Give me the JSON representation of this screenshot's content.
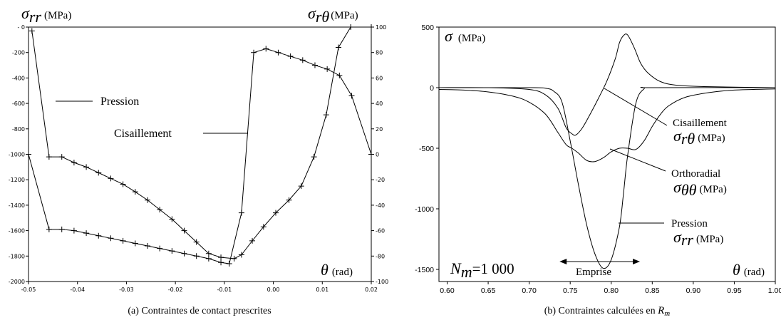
{
  "figure": {
    "caption_a": "(a)  Contraintes de contact prescrites",
    "caption_b_text": "(b)  Contraintes calculées en ",
    "caption_b_sym": "R",
    "caption_b_sub": "m"
  },
  "chart_data": [
    {
      "type": "line",
      "id": "a",
      "x_axis": {
        "symbol": "θ",
        "unit": "(rad)",
        "range": [
          -0.05,
          0.02
        ],
        "ticks": [
          "-0.05",
          "-0.04",
          "-0.03",
          "-0.02",
          "-0.01",
          "0.00",
          "0.01",
          "0.02"
        ],
        "tick_values": [
          -0.05,
          -0.04,
          -0.03,
          -0.02,
          -0.01,
          0.0,
          0.01,
          0.02
        ]
      },
      "y_left": {
        "symbol": "σ",
        "sub": "rr",
        "unit": "(MPa)",
        "range": [
          -2000,
          0
        ],
        "ticks": [
          "- 0",
          "-200",
          "-400",
          "-600",
          "-800",
          "-1000",
          "-1200",
          "-1400",
          "-1600",
          "-1800",
          "-2000"
        ],
        "tick_values": [
          0,
          -200,
          -400,
          -600,
          -800,
          -1000,
          -1200,
          -1400,
          -1600,
          -1800,
          -2000
        ]
      },
      "y_right": {
        "symbol": "σ",
        "sub": "rθ",
        "unit": "(MPa)",
        "range": [
          -100,
          100
        ],
        "ticks": [
          "100",
          "80",
          "60",
          "40",
          "20",
          "0",
          "-20",
          "-40",
          "-60",
          "-80",
          "-100"
        ],
        "tick_values": [
          100,
          80,
          60,
          40,
          20,
          0,
          -20,
          -40,
          -60,
          -80,
          -100
        ]
      },
      "annotations": [
        {
          "text": "Pression",
          "target": "pression"
        },
        {
          "text": "Cisaillement",
          "target": "cisaillement"
        }
      ],
      "series": [
        {
          "key": "pression",
          "axis": "left",
          "marker": "plus",
          "x": [
            -0.0493,
            -0.0458,
            -0.0432,
            -0.0407,
            -0.0382,
            -0.0357,
            -0.0332,
            -0.0307,
            -0.0282,
            -0.0257,
            -0.0232,
            -0.0207,
            -0.0182,
            -0.0157,
            -0.0132,
            -0.0107,
            -0.008,
            -0.0065,
            -0.0043,
            -0.002,
            0.0005,
            0.0032,
            0.0057,
            0.0083,
            0.0108,
            0.0133,
            0.0158,
            0.02
          ],
          "y": [
            -30,
            -1020,
            -1020,
            -1065,
            -1100,
            -1145,
            -1190,
            -1235,
            -1295,
            -1360,
            -1435,
            -1510,
            -1600,
            -1690,
            -1780,
            -1810,
            -1820,
            -1790,
            -1680,
            -1570,
            -1460,
            -1360,
            -1250,
            -1020,
            -690,
            -160,
            0,
            0
          ]
        },
        {
          "key": "cisaillement",
          "axis": "right",
          "marker": "plus",
          "x": [
            -0.05,
            -0.0458,
            -0.0432,
            -0.0407,
            -0.0382,
            -0.0357,
            -0.0332,
            -0.0307,
            -0.0282,
            -0.0257,
            -0.0232,
            -0.0207,
            -0.0182,
            -0.0157,
            -0.0132,
            -0.0107,
            -0.009,
            -0.0065,
            -0.004,
            -0.0015,
            0.001,
            0.0035,
            0.006,
            0.0085,
            0.011,
            0.0135,
            0.016,
            0.02
          ],
          "y": [
            0,
            -59,
            -59,
            -60,
            -62,
            -64,
            -66,
            -68,
            -70,
            -72,
            -74,
            -76,
            -78,
            -80,
            -82,
            -85,
            -86,
            -46,
            80,
            83,
            80,
            77,
            74,
            70,
            67,
            62,
            46,
            0
          ]
        }
      ]
    },
    {
      "type": "line",
      "id": "b",
      "x_axis": {
        "symbol": "θ",
        "unit": "(rad)",
        "range": [
          0.59,
          1.0
        ],
        "ticks": [
          "0.60",
          "0.65",
          "0.70",
          "0.75",
          "0.80",
          "0.85",
          "0.90",
          "0.95",
          "1.00"
        ],
        "tick_values": [
          0.6,
          0.65,
          0.7,
          0.75,
          0.8,
          0.85,
          0.9,
          0.95,
          1.0
        ]
      },
      "y_axis": {
        "symbol": "σ",
        "unit": "(MPa)",
        "range": [
          -1600,
          500
        ],
        "ticks": [
          "500",
          "0",
          "-500",
          "-1000",
          "-1500"
        ],
        "tick_values": [
          500,
          0,
          -500,
          -1000,
          -1500
        ]
      },
      "inset_sym": "N",
      "inset_sub": "m",
      "inset_value": "=1 000",
      "span_label": "Emprise",
      "span": [
        0.737,
        0.835
      ],
      "annotations": [
        {
          "text": "Cisaillement",
          "symbol": "σ",
          "sub": "rθ",
          "unit": "(MPa)",
          "target": "cisaillement"
        },
        {
          "text": "Orthoradial",
          "symbol": "σ",
          "sub": "θθ",
          "unit": "(MPa)",
          "target": "orthoradial"
        },
        {
          "text": "Pression",
          "symbol": "σ",
          "sub": "rr",
          "unit": "(MPa)",
          "target": "pression"
        }
      ],
      "series": [
        {
          "key": "cisaillement",
          "x": [
            0.59,
            0.65,
            0.7,
            0.72,
            0.735,
            0.745,
            0.752,
            0.757,
            0.765,
            0.775,
            0.785,
            0.795,
            0.805,
            0.81,
            0.815,
            0.82,
            0.828,
            0.836,
            0.845,
            0.86,
            0.88,
            0.92,
            1.0
          ],
          "y": [
            0,
            0,
            -15,
            -60,
            -170,
            -330,
            -380,
            -390,
            -330,
            -210,
            -80,
            60,
            240,
            370,
            430,
            435,
            330,
            200,
            120,
            50,
            20,
            8,
            0
          ]
        },
        {
          "key": "orthoradial",
          "x": [
            0.59,
            0.62,
            0.65,
            0.68,
            0.7,
            0.72,
            0.735,
            0.745,
            0.752,
            0.76,
            0.77,
            0.78,
            0.79,
            0.8,
            0.81,
            0.82,
            0.83,
            0.84,
            0.85,
            0.86,
            0.87,
            0.89,
            0.92,
            0.95,
            1.0
          ],
          "y": [
            -15,
            -20,
            -35,
            -70,
            -120,
            -220,
            -370,
            -470,
            -500,
            -540,
            -600,
            -610,
            -580,
            -530,
            -500,
            -500,
            -510,
            -440,
            -320,
            -220,
            -150,
            -80,
            -40,
            -20,
            -10
          ]
        },
        {
          "key": "pression",
          "x": [
            0.59,
            0.7,
            0.72,
            0.73,
            0.74,
            0.75,
            0.76,
            0.77,
            0.78,
            0.79,
            0.8,
            0.81,
            0.815,
            0.82,
            0.83,
            0.84,
            0.85,
            1.0
          ],
          "y": [
            0,
            0,
            -5,
            -30,
            -120,
            -440,
            -800,
            -1130,
            -1370,
            -1490,
            -1420,
            -1150,
            -870,
            -560,
            -130,
            -10,
            0,
            0
          ]
        }
      ]
    }
  ]
}
